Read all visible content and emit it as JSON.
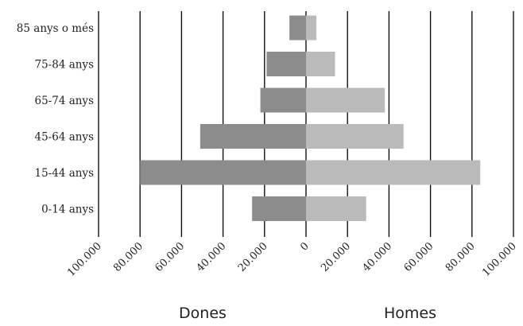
{
  "chart_data": {
    "type": "bar",
    "orientation": "horizontal-diverging",
    "categories": [
      "85 anys o més",
      "75-84 anys",
      "65-74 anys",
      "45-64 anys",
      "15-44 anys",
      "0-14 anys"
    ],
    "series": [
      {
        "name": "Dones",
        "side": "left",
        "color": "#8c8c8c",
        "values": [
          8000,
          19000,
          22000,
          51000,
          80000,
          26000
        ]
      },
      {
        "name": "Homes",
        "side": "right",
        "color": "#bababa",
        "values": [
          5000,
          14000,
          38000,
          47000,
          84000,
          29000
        ]
      }
    ],
    "x_ticks": [
      -100000,
      -80000,
      -60000,
      -40000,
      -20000,
      0,
      20000,
      40000,
      60000,
      80000,
      100000
    ],
    "x_tick_labels": [
      "100.000",
      "80.000",
      "60.000",
      "40.000",
      "20.000",
      "0",
      "20.000",
      "40.000",
      "60.000",
      "80.000",
      "100.000"
    ],
    "xlim": [
      -100000,
      100000
    ],
    "group_labels": [
      "Dones",
      "Homes"
    ],
    "grid": "vertical",
    "legend": "none"
  }
}
